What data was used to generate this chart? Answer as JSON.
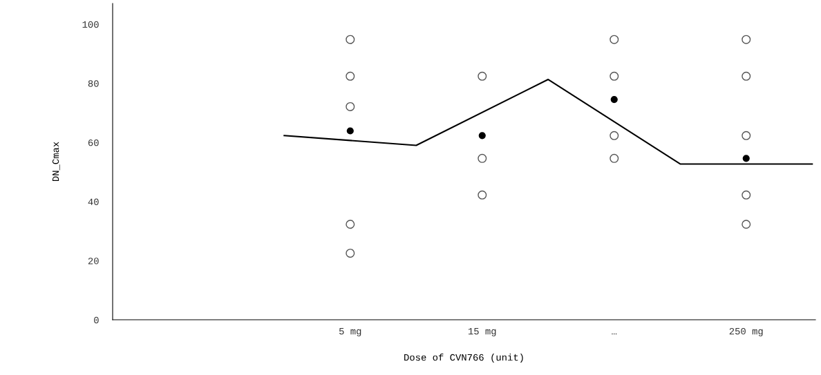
{
  "chart_data": {
    "type": "scatter",
    "xlabel": "Dose of CVN766 (unit)",
    "ylabel": "DN_Cmax",
    "categories": [
      null,
      null,
      null,
      "5 mg",
      null,
      "15 mg",
      null,
      "…",
      null,
      "250 mg",
      null
    ],
    "ylim": [
      0,
      107
    ],
    "yticks": [
      0,
      20,
      40,
      60,
      80,
      100
    ],
    "grid": false,
    "legend": false,
    "marker": "circle",
    "series": [
      {
        "color": "#555555",
        "x": [
          "5 mg",
          "5 mg",
          "5 mg",
          "5 mg",
          "5 mg",
          "15 mg",
          "15 mg",
          "15 mg",
          "…",
          "…",
          "…",
          "…",
          "250 mg",
          "250 mg",
          "250 mg",
          "250 mg",
          "250 mg"
        ],
        "values": [
          94.8,
          82.4,
          72.1,
          32.3,
          22.5,
          82.4,
          54.6,
          42.2,
          94.8,
          82.4,
          62.3,
          54.6,
          94.8,
          82.4,
          62.3,
          42.2,
          32.3
        ]
      },
      {
        "color": "#000000",
        "x": [
          "5 mg",
          "15 mg",
          "…",
          "250 mg"
        ],
        "values": [
          63.9,
          62.3,
          74.5,
          54.6
        ]
      },
      {
        "type": "line",
        "color": "#000000",
        "marker": "none",
        "values": [
          null,
          null,
          62.3,
          null,
          59.0,
          null,
          81.3,
          null,
          52.7,
          null,
          52.7
        ]
      }
    ]
  }
}
